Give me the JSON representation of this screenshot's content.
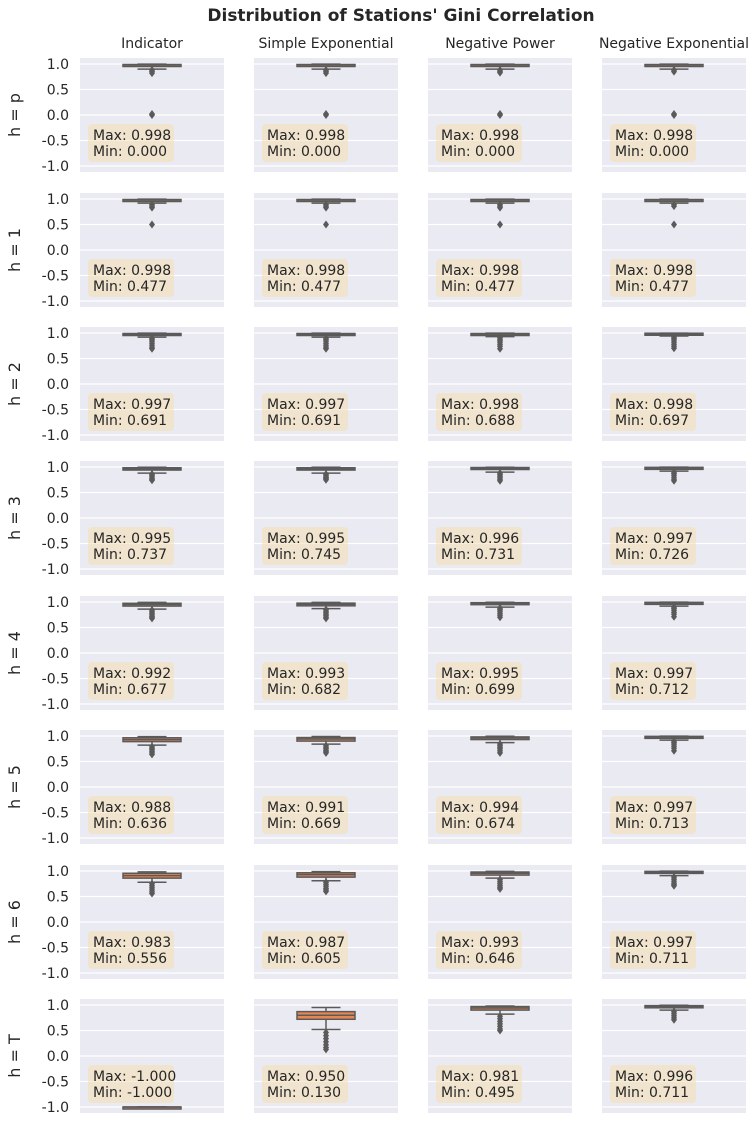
{
  "title": "Distribution of Stations' Gini Correlation",
  "columns": [
    "Indicator",
    "Simple Exponential",
    "Negative Power",
    "Negative Exponential"
  ],
  "rows": [
    "h = p",
    "h = 1",
    "h = 2",
    "h = 3",
    "h = 4",
    "h = 5",
    "h = 6",
    "h = T"
  ],
  "colors": {
    "panel_bg": "#eaeaf2",
    "grid": "#ffffff",
    "box_fill": "#e9864f",
    "box_edge": "#5a5a5a",
    "annotation_bg": "#f5deb3"
  },
  "chart_data": {
    "type": "box",
    "layout": "grid 8 rows x 4 columns",
    "ylim": [
      -1.0,
      1.0
    ],
    "yticks": [
      "1.0",
      "0.5",
      "0.0",
      "-0.5",
      "-1.0"
    ],
    "grid": true,
    "panels": [
      [
        {
          "max": "0.998",
          "min": "0.000",
          "q1": 0.97,
          "median": 0.98,
          "q3": 0.99,
          "whisker_low": 0.9,
          "whisker_high": 0.998,
          "outliers": [
            0.88,
            0.85,
            0.82,
            0.02,
            0.0
          ]
        },
        {
          "max": "0.998",
          "min": "0.000",
          "q1": 0.97,
          "median": 0.98,
          "q3": 0.99,
          "whisker_low": 0.9,
          "whisker_high": 0.998,
          "outliers": [
            0.88,
            0.85,
            0.82,
            0.02,
            0.0
          ]
        },
        {
          "max": "0.998",
          "min": "0.000",
          "q1": 0.97,
          "median": 0.98,
          "q3": 0.99,
          "whisker_low": 0.9,
          "whisker_high": 0.998,
          "outliers": [
            0.88,
            0.85,
            0.83,
            0.02,
            0.0
          ]
        },
        {
          "max": "0.998",
          "min": "0.000",
          "q1": 0.97,
          "median": 0.98,
          "q3": 0.99,
          "whisker_low": 0.9,
          "whisker_high": 0.998,
          "outliers": [
            0.88,
            0.85,
            0.02,
            0.0
          ]
        }
      ],
      [
        {
          "max": "0.998",
          "min": "0.477",
          "q1": 0.97,
          "median": 0.98,
          "q3": 0.99,
          "whisker_low": 0.92,
          "whisker_high": 0.998,
          "outliers": [
            0.89,
            0.86,
            0.83,
            0.5
          ]
        },
        {
          "max": "0.998",
          "min": "0.477",
          "q1": 0.97,
          "median": 0.98,
          "q3": 0.99,
          "whisker_low": 0.92,
          "whisker_high": 0.998,
          "outliers": [
            0.89,
            0.86,
            0.83,
            0.5
          ]
        },
        {
          "max": "0.998",
          "min": "0.477",
          "q1": 0.97,
          "median": 0.98,
          "q3": 0.99,
          "whisker_low": 0.92,
          "whisker_high": 0.998,
          "outliers": [
            0.89,
            0.86,
            0.83,
            0.5
          ]
        },
        {
          "max": "0.998",
          "min": "0.477",
          "q1": 0.97,
          "median": 0.98,
          "q3": 0.99,
          "whisker_low": 0.92,
          "whisker_high": 0.998,
          "outliers": [
            0.89,
            0.86,
            0.5
          ]
        }
      ],
      [
        {
          "max": "0.997",
          "min": "0.691",
          "q1": 0.96,
          "median": 0.975,
          "q3": 0.99,
          "whisker_low": 0.92,
          "whisker_high": 0.997,
          "outliers": [
            0.9,
            0.87,
            0.84,
            0.8,
            0.76,
            0.72,
            0.69
          ]
        },
        {
          "max": "0.997",
          "min": "0.691",
          "q1": 0.96,
          "median": 0.975,
          "q3": 0.99,
          "whisker_low": 0.92,
          "whisker_high": 0.997,
          "outliers": [
            0.9,
            0.87,
            0.84,
            0.8,
            0.76,
            0.72,
            0.69
          ]
        },
        {
          "max": "0.998",
          "min": "0.688",
          "q1": 0.965,
          "median": 0.978,
          "q3": 0.99,
          "whisker_low": 0.93,
          "whisker_high": 0.998,
          "outliers": [
            0.91,
            0.88,
            0.85,
            0.82,
            0.78,
            0.74,
            0.69
          ]
        },
        {
          "max": "0.998",
          "min": "0.697",
          "q1": 0.97,
          "median": 0.985,
          "q3": 0.995,
          "whisker_low": 0.94,
          "whisker_high": 0.998,
          "outliers": [
            0.92,
            0.89,
            0.86,
            0.82,
            0.78,
            0.74,
            0.7
          ]
        }
      ],
      [
        {
          "max": "0.995",
          "min": "0.737",
          "q1": 0.94,
          "median": 0.965,
          "q3": 0.985,
          "whisker_low": 0.88,
          "whisker_high": 0.995,
          "outliers": [
            0.86,
            0.84,
            0.81,
            0.78,
            0.76,
            0.74
          ]
        },
        {
          "max": "0.995",
          "min": "0.745",
          "q1": 0.94,
          "median": 0.965,
          "q3": 0.985,
          "whisker_low": 0.88,
          "whisker_high": 0.995,
          "outliers": [
            0.86,
            0.84,
            0.81,
            0.79,
            0.77,
            0.75
          ]
        },
        {
          "max": "0.996",
          "min": "0.731",
          "q1": 0.955,
          "median": 0.975,
          "q3": 0.99,
          "whisker_low": 0.9,
          "whisker_high": 0.996,
          "outliers": [
            0.88,
            0.85,
            0.82,
            0.79,
            0.76,
            0.73
          ]
        },
        {
          "max": "0.997",
          "min": "0.726",
          "q1": 0.96,
          "median": 0.98,
          "q3": 0.993,
          "whisker_low": 0.92,
          "whisker_high": 0.997,
          "outliers": [
            0.9,
            0.87,
            0.84,
            0.8,
            0.76,
            0.73
          ]
        }
      ],
      [
        {
          "max": "0.992",
          "min": "0.677",
          "q1": 0.92,
          "median": 0.95,
          "q3": 0.975,
          "whisker_low": 0.86,
          "whisker_high": 0.992,
          "outliers": [
            0.84,
            0.81,
            0.78,
            0.75,
            0.72,
            0.7,
            0.68
          ]
        },
        {
          "max": "0.993",
          "min": "0.682",
          "q1": 0.925,
          "median": 0.955,
          "q3": 0.978,
          "whisker_low": 0.87,
          "whisker_high": 0.993,
          "outliers": [
            0.85,
            0.82,
            0.79,
            0.76,
            0.73,
            0.7,
            0.68
          ]
        },
        {
          "max": "0.995",
          "min": "0.699",
          "q1": 0.95,
          "median": 0.97,
          "q3": 0.987,
          "whisker_low": 0.9,
          "whisker_high": 0.995,
          "outliers": [
            0.88,
            0.85,
            0.82,
            0.78,
            0.74,
            0.7
          ]
        },
        {
          "max": "0.997",
          "min": "0.712",
          "q1": 0.96,
          "median": 0.98,
          "q3": 0.993,
          "whisker_low": 0.92,
          "whisker_high": 0.997,
          "outliers": [
            0.9,
            0.87,
            0.84,
            0.8,
            0.76,
            0.71
          ]
        }
      ],
      [
        {
          "max": "0.988",
          "min": "0.636",
          "q1": 0.89,
          "median": 0.93,
          "q3": 0.965,
          "whisker_low": 0.82,
          "whisker_high": 0.988,
          "outliers": [
            0.79,
            0.76,
            0.73,
            0.7,
            0.67,
            0.64
          ]
        },
        {
          "max": "0.991",
          "min": "0.669",
          "q1": 0.9,
          "median": 0.94,
          "q3": 0.97,
          "whisker_low": 0.84,
          "whisker_high": 0.991,
          "outliers": [
            0.81,
            0.78,
            0.75,
            0.72,
            0.69,
            0.67
          ]
        },
        {
          "max": "0.994",
          "min": "0.674",
          "q1": 0.93,
          "median": 0.96,
          "q3": 0.982,
          "whisker_low": 0.87,
          "whisker_high": 0.994,
          "outliers": [
            0.84,
            0.81,
            0.78,
            0.75,
            0.71,
            0.67
          ]
        },
        {
          "max": "0.997",
          "min": "0.713",
          "q1": 0.96,
          "median": 0.978,
          "q3": 0.993,
          "whisker_low": 0.92,
          "whisker_high": 0.997,
          "outliers": [
            0.9,
            0.87,
            0.84,
            0.8,
            0.76,
            0.71
          ]
        }
      ],
      [
        {
          "max": "0.983",
          "min": "0.556",
          "q1": 0.86,
          "median": 0.91,
          "q3": 0.955,
          "whisker_low": 0.78,
          "whisker_high": 0.983,
          "outliers": [
            0.75,
            0.71,
            0.67,
            0.63,
            0.59,
            0.56
          ]
        },
        {
          "max": "0.987",
          "min": "0.605",
          "q1": 0.88,
          "median": 0.93,
          "q3": 0.965,
          "whisker_low": 0.81,
          "whisker_high": 0.987,
          "outliers": [
            0.78,
            0.74,
            0.7,
            0.66,
            0.63,
            0.6
          ]
        },
        {
          "max": "0.993",
          "min": "0.646",
          "q1": 0.92,
          "median": 0.955,
          "q3": 0.98,
          "whisker_low": 0.86,
          "whisker_high": 0.993,
          "outliers": [
            0.83,
            0.79,
            0.75,
            0.71,
            0.68,
            0.65
          ]
        },
        {
          "max": "0.997",
          "min": "0.711",
          "q1": 0.955,
          "median": 0.975,
          "q3": 0.992,
          "whisker_low": 0.91,
          "whisker_high": 0.997,
          "outliers": [
            0.88,
            0.84,
            0.8,
            0.76,
            0.73,
            0.71
          ]
        }
      ],
      [
        {
          "max": "-1.000",
          "min": "-1.000",
          "q1": -1.0,
          "median": -1.0,
          "q3": -1.0,
          "whisker_low": -1.0,
          "whisker_high": -1.0,
          "outliers": []
        },
        {
          "max": "0.950",
          "min": "0.130",
          "q1": 0.72,
          "median": 0.8,
          "q3": 0.87,
          "whisker_low": 0.52,
          "whisker_high": 0.95,
          "outliers": [
            0.46,
            0.4,
            0.34,
            0.28,
            0.22,
            0.17,
            0.13
          ]
        },
        {
          "max": "0.981",
          "min": "0.495",
          "q1": 0.9,
          "median": 0.94,
          "q3": 0.97,
          "whisker_low": 0.82,
          "whisker_high": 0.981,
          "outliers": [
            0.78,
            0.73,
            0.68,
            0.63,
            0.58,
            0.53,
            0.5
          ]
        },
        {
          "max": "0.996",
          "min": "0.711",
          "q1": 0.945,
          "median": 0.97,
          "q3": 0.988,
          "whisker_low": 0.9,
          "whisker_high": 0.996,
          "outliers": [
            0.87,
            0.83,
            0.79,
            0.75,
            0.71
          ]
        }
      ]
    ]
  }
}
